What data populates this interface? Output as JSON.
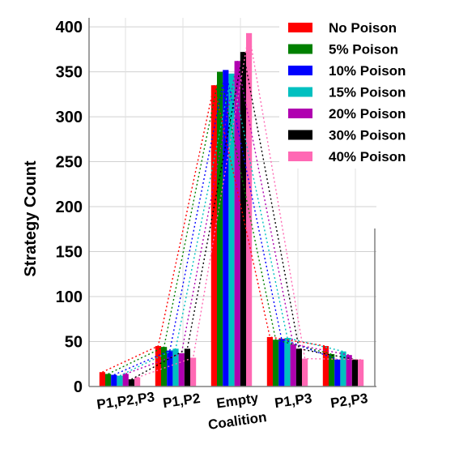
{
  "chart_data": {
    "type": "bar",
    "ylabel": "Strategy Count",
    "ylim": [
      0,
      410
    ],
    "yticks": [
      0,
      50,
      100,
      150,
      200,
      250,
      300,
      350,
      400
    ],
    "grid": true,
    "legend_position": "top-right",
    "categories": [
      [
        "P1,P2,P3"
      ],
      [
        "P1,P2"
      ],
      [
        "Empty",
        "Coalition"
      ],
      [
        "P1,P3"
      ],
      [
        "P2,P3"
      ]
    ],
    "series": [
      {
        "name": "No Poison",
        "color": "#ff0000",
        "values": [
          16,
          45,
          335,
          55,
          45
        ]
      },
      {
        "name": "5% Poison",
        "color": "#008000",
        "values": [
          14,
          44,
          350,
          52,
          36
        ]
      },
      {
        "name": "10% Poison",
        "color": "#0000ff",
        "values": [
          13,
          40,
          352,
          53,
          30
        ]
      },
      {
        "name": "15% Poison",
        "color": "#00c0c0",
        "values": [
          12,
          42,
          348,
          54,
          39
        ]
      },
      {
        "name": "20% Poison",
        "color": "#b000b0",
        "values": [
          14,
          37,
          362,
          47,
          35
        ]
      },
      {
        "name": "30% Poison",
        "color": "#000000",
        "values": [
          8,
          42,
          372,
          42,
          30
        ]
      },
      {
        "name": "40% Poison",
        "color": "#ff69b4",
        "values": [
          10,
          32,
          393,
          31,
          30
        ]
      }
    ]
  }
}
